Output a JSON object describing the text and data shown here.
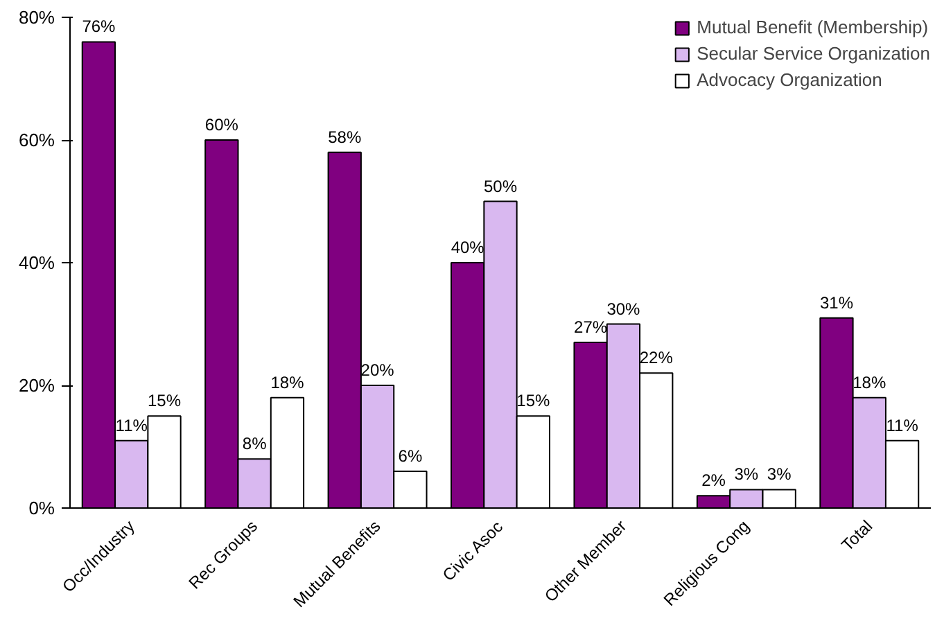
{
  "chart_data": {
    "type": "bar",
    "categories": [
      "Occ/Industry",
      "Rec Groups",
      "Mutual Benefits",
      "Civic Asoc",
      "Other Member",
      "Religious Cong",
      "Total"
    ],
    "series": [
      {
        "name": "Mutual Benefit (Membership)",
        "color": "#800080",
        "values": [
          76,
          60,
          58,
          40,
          27,
          2,
          31
        ],
        "value_labels": [
          "76%",
          "60%",
          "58%",
          "40%",
          "27%",
          "2%",
          "31%"
        ]
      },
      {
        "name": "Secular Service Organization",
        "color": "#d9b8f0",
        "values": [
          11,
          8,
          20,
          50,
          30,
          3,
          18
        ],
        "value_labels": [
          "11%",
          "8%",
          "20%",
          "50%",
          "30%",
          "3%",
          "18%"
        ]
      },
      {
        "name": "Advocacy Organization",
        "color": "#ffffff",
        "values": [
          15,
          18,
          6,
          15,
          22,
          3,
          11
        ],
        "value_labels": [
          "15%",
          "18%",
          "6%",
          "15%",
          "22%",
          "3%",
          "11%"
        ]
      }
    ],
    "ylim": [
      0,
      80
    ],
    "yticks": [
      {
        "value": 0,
        "label": "0%"
      },
      {
        "value": 20,
        "label": "20%"
      },
      {
        "value": 40,
        "label": "40%"
      },
      {
        "value": 60,
        "label": "60%"
      },
      {
        "value": 80,
        "label": "80%"
      }
    ],
    "grid": false,
    "legend": "top right"
  }
}
